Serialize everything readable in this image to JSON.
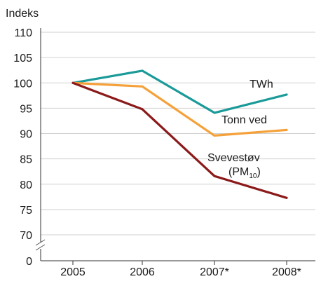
{
  "chart_data": {
    "type": "line",
    "ylabel": "Indeks",
    "categories": [
      "2005",
      "2006",
      "2007*",
      "2008*"
    ],
    "y_ticks": [
      "110",
      "105",
      "100",
      "95",
      "90",
      "85",
      "80",
      "75",
      "70",
      "0"
    ],
    "ylim": [
      70,
      110
    ],
    "axis_break": "between 0 and 70",
    "grid": "horizontal",
    "series": [
      {
        "name": "TWh",
        "color": "#1a9a98",
        "values": [
          100,
          102.4,
          94.1,
          97.7
        ]
      },
      {
        "name": "Tonn ved",
        "color": "#f5a13a",
        "values": [
          100,
          99.3,
          89.6,
          90.7
        ]
      },
      {
        "name": "Svevestøv",
        "name_line2": "(PM",
        "name_sub": "10",
        "name_close": ")",
        "color": "#8b1a1a",
        "values": [
          100,
          94.8,
          81.6,
          77.3
        ]
      }
    ]
  }
}
